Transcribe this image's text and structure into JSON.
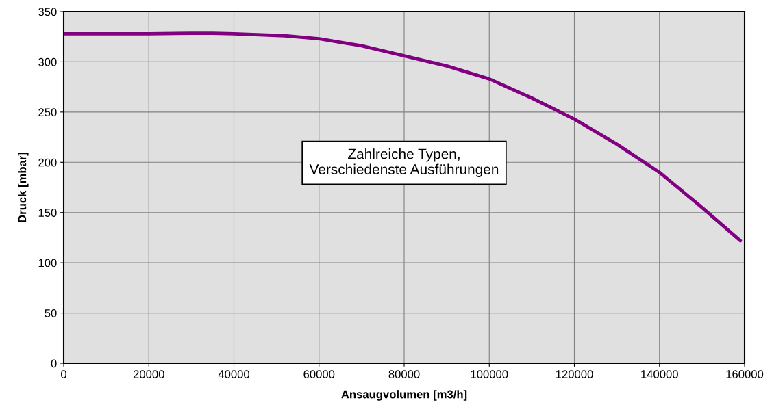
{
  "chart_data": {
    "type": "line",
    "xlabel": "Ansaugvolumen [m3/h]",
    "ylabel": "Druck [mbar]",
    "annotations": [
      "Zahlreiche Typen,\nVerschiedenste Ausführungen"
    ],
    "x": [
      0,
      10000,
      20000,
      30000,
      35000,
      40000,
      52000,
      60000,
      70000,
      80000,
      90000,
      100000,
      110000,
      120000,
      130000,
      140000,
      150000,
      159000
    ],
    "series": [
      {
        "color": "#800080",
        "values": [
          328,
          328,
          328,
          328.5,
          328.5,
          328,
          326,
          323,
          316,
          306,
          296,
          283,
          264,
          243,
          218,
          190,
          155,
          122
        ]
      }
    ],
    "xlim": [
      0,
      160000
    ],
    "xticks": [
      0,
      20000,
      40000,
      60000,
      80000,
      100000,
      120000,
      140000,
      160000
    ],
    "ylim": [
      0,
      350
    ],
    "yticks": [
      0,
      50,
      100,
      150,
      200,
      250,
      300,
      350
    ],
    "grid": true,
    "marker": "none",
    "line_style": "solid",
    "legend": false
  }
}
